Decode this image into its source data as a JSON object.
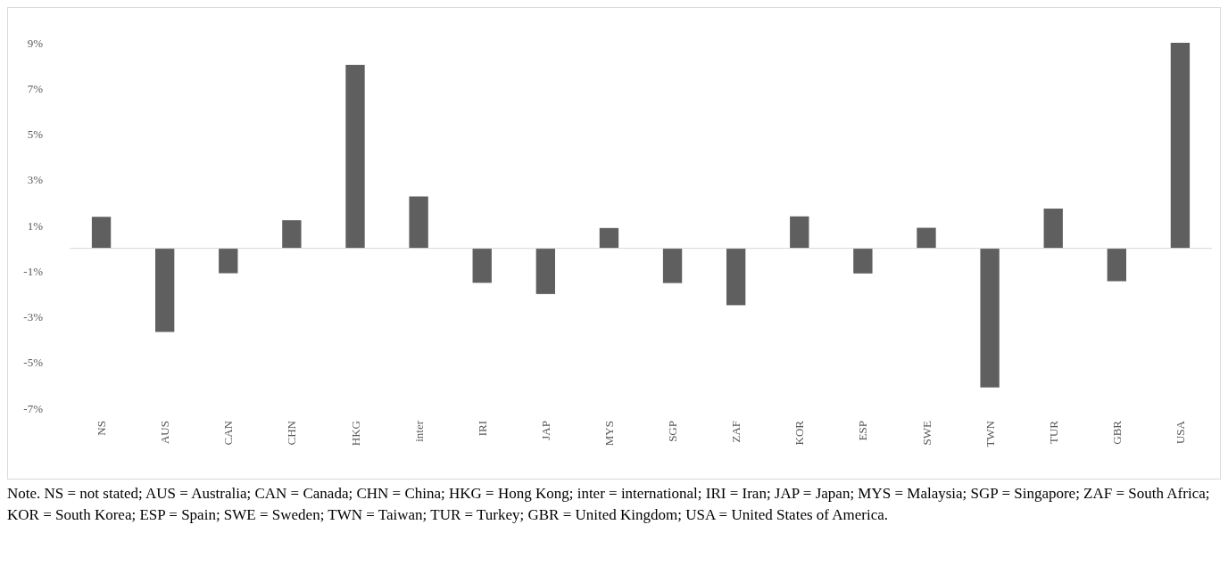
{
  "chart_data": {
    "type": "bar",
    "categories": [
      "NS",
      "AUS",
      "CAN",
      "CHN",
      "HKG",
      "inter",
      "IRI",
      "JAP",
      "MYS",
      "SGP",
      "ZAF",
      "KOR",
      "ESP",
      "SWE",
      "TWN",
      "TUR",
      "GBR",
      "USA"
    ],
    "values": [
      1.38,
      -3.66,
      -1.09,
      1.23,
      8.03,
      2.27,
      -1.51,
      -2.0,
      0.89,
      -1.52,
      -2.49,
      1.4,
      -1.1,
      0.9,
      -6.09,
      1.74,
      -1.44,
      9.0
    ],
    "color": "#5f5f5f",
    "ylim": [
      -7,
      9
    ],
    "yticks": [
      {
        "value": -7,
        "label": "-7%"
      },
      {
        "value": -5,
        "label": "-5%"
      },
      {
        "value": -3,
        "label": "-3%"
      },
      {
        "value": -1,
        "label": "-1%"
      },
      {
        "value": 1,
        "label": "1%"
      },
      {
        "value": 3,
        "label": "3%"
      },
      {
        "value": 5,
        "label": "5%"
      },
      {
        "value": 7,
        "label": "7%"
      },
      {
        "value": 9,
        "label": "9%"
      }
    ],
    "grid": false,
    "annotations": [
      "Note. NS = not stated; AUS = Australia; CAN = Canada; CHN = China; HKG = Hong Kong; inter = international; IRI = Iran; JAP = Japan; MYS = Malaysia; SGP = Singapore; ZAF = South Africa; KOR = South Korea; ESP = Spain; SWE = Sweden; TWN = Taiwan; TUR = Turkey; GBR = United Kingdom; USA = United States of America."
    ]
  }
}
